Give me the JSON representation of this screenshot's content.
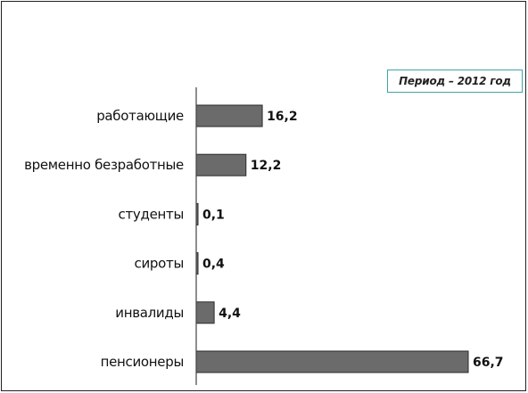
{
  "legend_text": "Период – 2012 год",
  "chart_data": {
    "type": "bar",
    "orientation": "horizontal",
    "title": "",
    "xlabel": "",
    "ylabel": "",
    "categories": [
      "работающие",
      "временно безработные",
      "студенты",
      "сироты",
      "инвалиды",
      "пенсионеры"
    ],
    "values": [
      16.2,
      12.2,
      0.1,
      0.4,
      4.4,
      66.7
    ],
    "value_labels": [
      "16,2",
      "12,2",
      "0,1",
      "0,4",
      "4,4",
      "66,7"
    ],
    "xlim": [
      0,
      68
    ],
    "grid": false,
    "bar_color": "#6b6b6b",
    "bar_edge_color": "#2a2a2a"
  }
}
